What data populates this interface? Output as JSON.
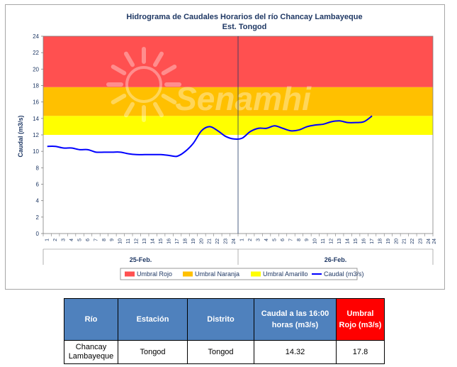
{
  "chart_data": {
    "type": "line",
    "title": "Hidrograma de Caudales Horarios del río Chancay Lambayeque",
    "subtitle": "Est. Tongod",
    "xlabel": "",
    "ylabel": "Caudal  (m3/s)",
    "ylim": [
      0,
      24
    ],
    "yticks": [
      "0",
      "2",
      "4",
      "6",
      "8",
      "10",
      "12",
      "14",
      "16",
      "18",
      "20",
      "22",
      "24"
    ],
    "xticks": [
      "1",
      "2",
      "3",
      "4",
      "5",
      "6",
      "7",
      "8",
      "9",
      "10",
      "11",
      "12",
      "13",
      "14",
      "15",
      "16",
      "17",
      "18",
      "19",
      "20",
      "21",
      "22",
      "23",
      "24",
      "1",
      "2",
      "3",
      "4",
      "5",
      "6",
      "7",
      "8",
      "9",
      "10",
      "11",
      "12",
      "13",
      "14",
      "15",
      "16",
      "17",
      "18",
      "19",
      "20",
      "21",
      "22",
      "23",
      "24"
    ],
    "day_labels": [
      "25-Feb.",
      "26-Feb."
    ],
    "watermark": "Senamhi",
    "bands": [
      {
        "name": "Umbral Rojo",
        "from": 17.8,
        "to": 24,
        "color": "#ff5050"
      },
      {
        "name": "Umbral Naranja",
        "from": 14.3,
        "to": 17.8,
        "color": "#ffc000"
      },
      {
        "name": "Umbral Amarillo",
        "from": 12.0,
        "to": 14.3,
        "color": "#ffff00"
      }
    ],
    "series": [
      {
        "name": "Caudal (m3/s)",
        "color": "#0000ff",
        "values": [
          10.6,
          10.6,
          10.4,
          10.4,
          10.2,
          10.2,
          9.9,
          9.9,
          9.9,
          9.9,
          9.7,
          9.6,
          9.6,
          9.6,
          9.6,
          9.5,
          9.4,
          10.0,
          11.0,
          12.5,
          13.0,
          12.5,
          11.8,
          11.5,
          11.6,
          12.4,
          12.8,
          12.8,
          13.1,
          12.8,
          12.5,
          12.6,
          13.0,
          13.2,
          13.3,
          13.6,
          13.7,
          13.5,
          13.5,
          13.6,
          14.3
        ]
      }
    ],
    "legend": {
      "position": "bottom",
      "items": [
        {
          "label": "Umbral Rojo",
          "color": "#ff5050",
          "kind": "box"
        },
        {
          "label": "Umbral Naranja",
          "color": "#ffc000",
          "kind": "box"
        },
        {
          "label": "Umbral Amarillo",
          "color": "#ffff00",
          "kind": "box"
        },
        {
          "label": "Caudal (m3/s)",
          "color": "#0000ff",
          "kind": "line"
        }
      ]
    },
    "day_divider_after_index": 24
  },
  "table": {
    "headers": [
      "Río",
      "Estación",
      "Distrito",
      "Caudal a las 16:00 horas (m3/s)",
      "Umbral Rojo (m3/s)"
    ],
    "row": [
      "Chancay Lambayeque",
      "Tongod",
      "Tongod",
      "14.32",
      "17.8"
    ],
    "header_colors": [
      "#4f81bd",
      "#4f81bd",
      "#4f81bd",
      "#4f81bd",
      "#ff0000"
    ]
  }
}
